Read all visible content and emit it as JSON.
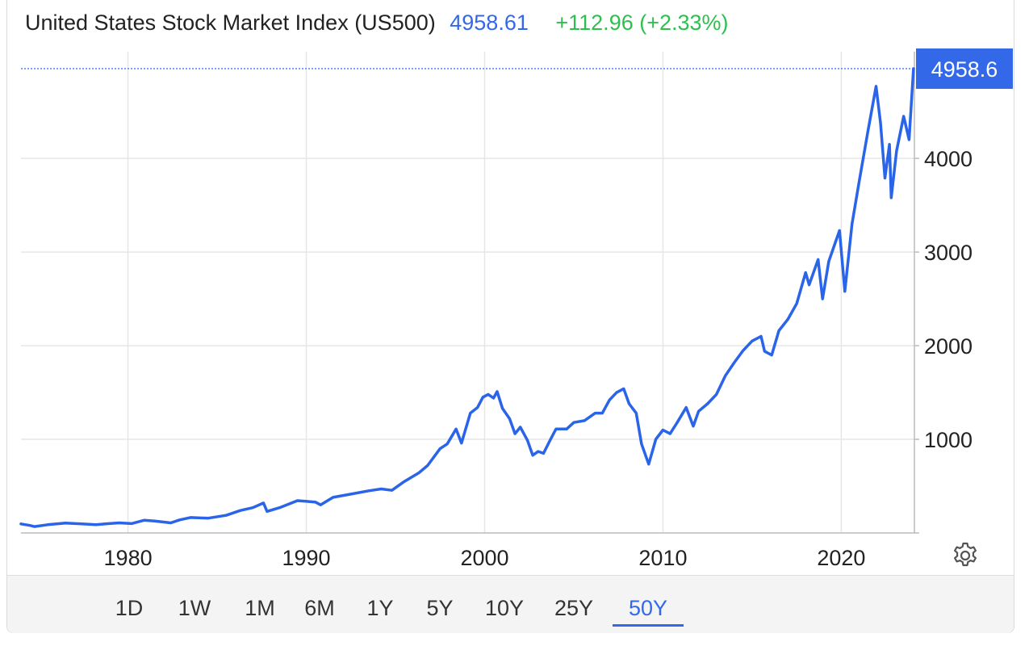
{
  "header": {
    "title": "United States Stock Market Index (US500)",
    "price": "4958.61",
    "change": "+112.96 (+2.33%)"
  },
  "colors": {
    "line": "#2a64e8",
    "price_tag": "#3369e8",
    "change_positive": "#2fbf4f",
    "grid": "#e6e6e6"
  },
  "chart_data": {
    "type": "line",
    "title": "",
    "xlabel": "",
    "ylabel": "",
    "x_ticks": [
      1980,
      1990,
      2000,
      2010,
      2020
    ],
    "y_ticks": [
      1000,
      2000,
      3000,
      4000
    ],
    "xlim": [
      1974,
      2024.1
    ],
    "ylim": [
      0,
      5140
    ],
    "grid": true,
    "last_value_label": "4958.6",
    "series": [
      {
        "values": [
          [
            1974.0,
            97
          ],
          [
            1974.5,
            80
          ],
          [
            1974.75,
            68
          ],
          [
            1975.5,
            88
          ],
          [
            1976.5,
            105
          ],
          [
            1977.5,
            96
          ],
          [
            1978.2,
            88
          ],
          [
            1978.8,
            98
          ],
          [
            1979.5,
            108
          ],
          [
            1980.2,
            100
          ],
          [
            1980.9,
            135
          ],
          [
            1981.5,
            128
          ],
          [
            1982.4,
            108
          ],
          [
            1982.9,
            140
          ],
          [
            1983.5,
            165
          ],
          [
            1984.5,
            158
          ],
          [
            1985.5,
            188
          ],
          [
            1986.3,
            240
          ],
          [
            1987.0,
            270
          ],
          [
            1987.6,
            320
          ],
          [
            1987.8,
            230
          ],
          [
            1988.5,
            270
          ],
          [
            1989.5,
            345
          ],
          [
            1990.5,
            330
          ],
          [
            1990.8,
            300
          ],
          [
            1991.5,
            380
          ],
          [
            1992.5,
            415
          ],
          [
            1993.5,
            450
          ],
          [
            1994.2,
            470
          ],
          [
            1994.8,
            455
          ],
          [
            1995.5,
            550
          ],
          [
            1996.3,
            640
          ],
          [
            1996.8,
            720
          ],
          [
            1997.5,
            900
          ],
          [
            1997.9,
            950
          ],
          [
            1998.4,
            1110
          ],
          [
            1998.7,
            960
          ],
          [
            1999.2,
            1280
          ],
          [
            1999.6,
            1340
          ],
          [
            1999.9,
            1450
          ],
          [
            2000.2,
            1480
          ],
          [
            2000.5,
            1440
          ],
          [
            2000.7,
            1510
          ],
          [
            2001.0,
            1330
          ],
          [
            2001.4,
            1220
          ],
          [
            2001.7,
            1060
          ],
          [
            2002.0,
            1130
          ],
          [
            2002.4,
            990
          ],
          [
            2002.7,
            830
          ],
          [
            2003.0,
            870
          ],
          [
            2003.3,
            850
          ],
          [
            2003.7,
            1000
          ],
          [
            2004.0,
            1110
          ],
          [
            2004.6,
            1110
          ],
          [
            2005.0,
            1180
          ],
          [
            2005.6,
            1200
          ],
          [
            2006.2,
            1280
          ],
          [
            2006.6,
            1280
          ],
          [
            2007.0,
            1420
          ],
          [
            2007.4,
            1500
          ],
          [
            2007.8,
            1540
          ],
          [
            2008.1,
            1380
          ],
          [
            2008.5,
            1280
          ],
          [
            2008.8,
            950
          ],
          [
            2009.2,
            735
          ],
          [
            2009.6,
            1000
          ],
          [
            2010.0,
            1100
          ],
          [
            2010.4,
            1060
          ],
          [
            2010.8,
            1180
          ],
          [
            2011.3,
            1340
          ],
          [
            2011.7,
            1140
          ],
          [
            2012.0,
            1300
          ],
          [
            2012.5,
            1380
          ],
          [
            2013.0,
            1480
          ],
          [
            2013.5,
            1680
          ],
          [
            2014.0,
            1820
          ],
          [
            2014.5,
            1950
          ],
          [
            2015.0,
            2050
          ],
          [
            2015.5,
            2100
          ],
          [
            2015.7,
            1940
          ],
          [
            2016.1,
            1900
          ],
          [
            2016.5,
            2160
          ],
          [
            2017.0,
            2280
          ],
          [
            2017.5,
            2450
          ],
          [
            2018.0,
            2780
          ],
          [
            2018.2,
            2650
          ],
          [
            2018.7,
            2920
          ],
          [
            2018.95,
            2500
          ],
          [
            2019.3,
            2900
          ],
          [
            2019.9,
            3230
          ],
          [
            2020.2,
            2580
          ],
          [
            2020.6,
            3300
          ],
          [
            2021.0,
            3750
          ],
          [
            2021.5,
            4300
          ],
          [
            2021.95,
            4770
          ],
          [
            2022.2,
            4380
          ],
          [
            2022.45,
            3790
          ],
          [
            2022.7,
            4150
          ],
          [
            2022.8,
            3580
          ],
          [
            2023.1,
            4080
          ],
          [
            2023.5,
            4450
          ],
          [
            2023.8,
            4200
          ],
          [
            2024.05,
            4958.6
          ]
        ]
      }
    ]
  },
  "range_buttons": [
    "1D",
    "1W",
    "1M",
    "6M",
    "1Y",
    "5Y",
    "10Y",
    "25Y",
    "50Y"
  ],
  "active_range": "50Y",
  "settings_icon": "gear-icon"
}
